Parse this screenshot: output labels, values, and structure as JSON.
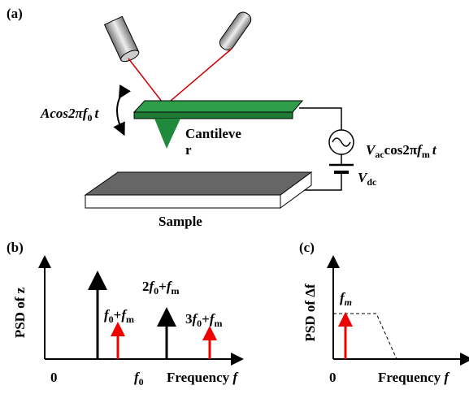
{
  "panel_a": {
    "label": "(a)",
    "drive": {
      "a": "Acos2π",
      "b": "f",
      "s": "0",
      "t": "t"
    },
    "cantilever": [
      "Cantileve",
      "r"
    ],
    "ac_source": {
      "a": "V",
      "s": "ac",
      "b": "cos2π",
      "c": "f",
      "s2": "m",
      "t": "t"
    },
    "dc_source": {
      "a": "V",
      "s": "dc"
    },
    "sample": "Sample"
  },
  "panel_b": {
    "label": "(b)",
    "y_axis": "PSD of z",
    "origin": "0",
    "f0": {
      "a": "f",
      "s": "0"
    },
    "x_axis": {
      "a": "Frequency ",
      "b": "f"
    },
    "peak_2f0_fm": {
      "a": "2",
      "b": "f",
      "s": "0",
      "c": "+",
      "d": "f",
      "s2": "m"
    },
    "peak_f0_fm": {
      "b": "f",
      "s": "0",
      "c": "+",
      "d": "f",
      "s2": "m"
    },
    "peak_3f0_fm": {
      "a": "3",
      "b": "f",
      "s": "0",
      "c": "+",
      "d": "f",
      "s2": "m"
    }
  },
  "panel_c": {
    "label": "(c)",
    "y_axis": "PSD of Δf",
    "origin": "0",
    "fm": {
      "a": "f",
      "s": "m"
    },
    "x_axis": {
      "a": "Frequency ",
      "b": "f"
    }
  }
}
